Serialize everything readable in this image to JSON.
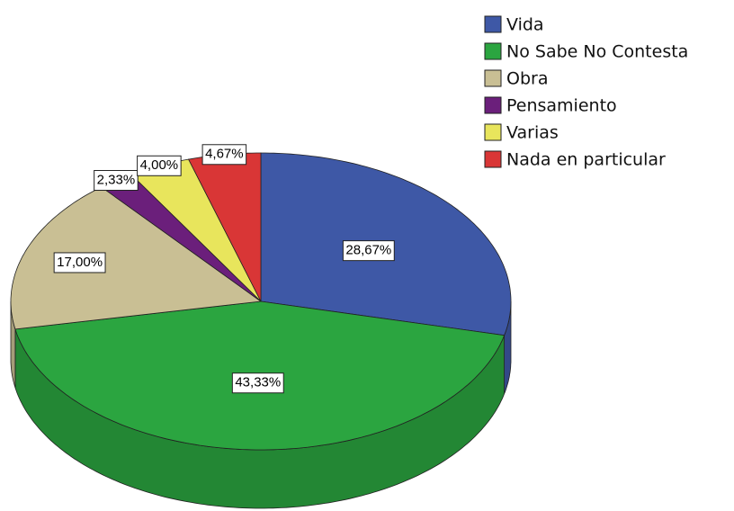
{
  "chart_data": {
    "type": "pie3d",
    "categories": [
      "Vida",
      "No Sabe No Contesta",
      "Obra",
      "Pensamiento",
      "Varias",
      "Nada en particular"
    ],
    "values": [
      28.67,
      43.33,
      17.0,
      2.33,
      4.0,
      4.67
    ],
    "value_labels": [
      "28,67%",
      "43,33%",
      "17,00%",
      "2,33%",
      "4,00%",
      "4,67%"
    ],
    "colors": [
      "#3e58a6",
      "#2ba540",
      "#c9bf94",
      "#6b1f7b",
      "#e8e55c",
      "#d93636"
    ]
  }
}
